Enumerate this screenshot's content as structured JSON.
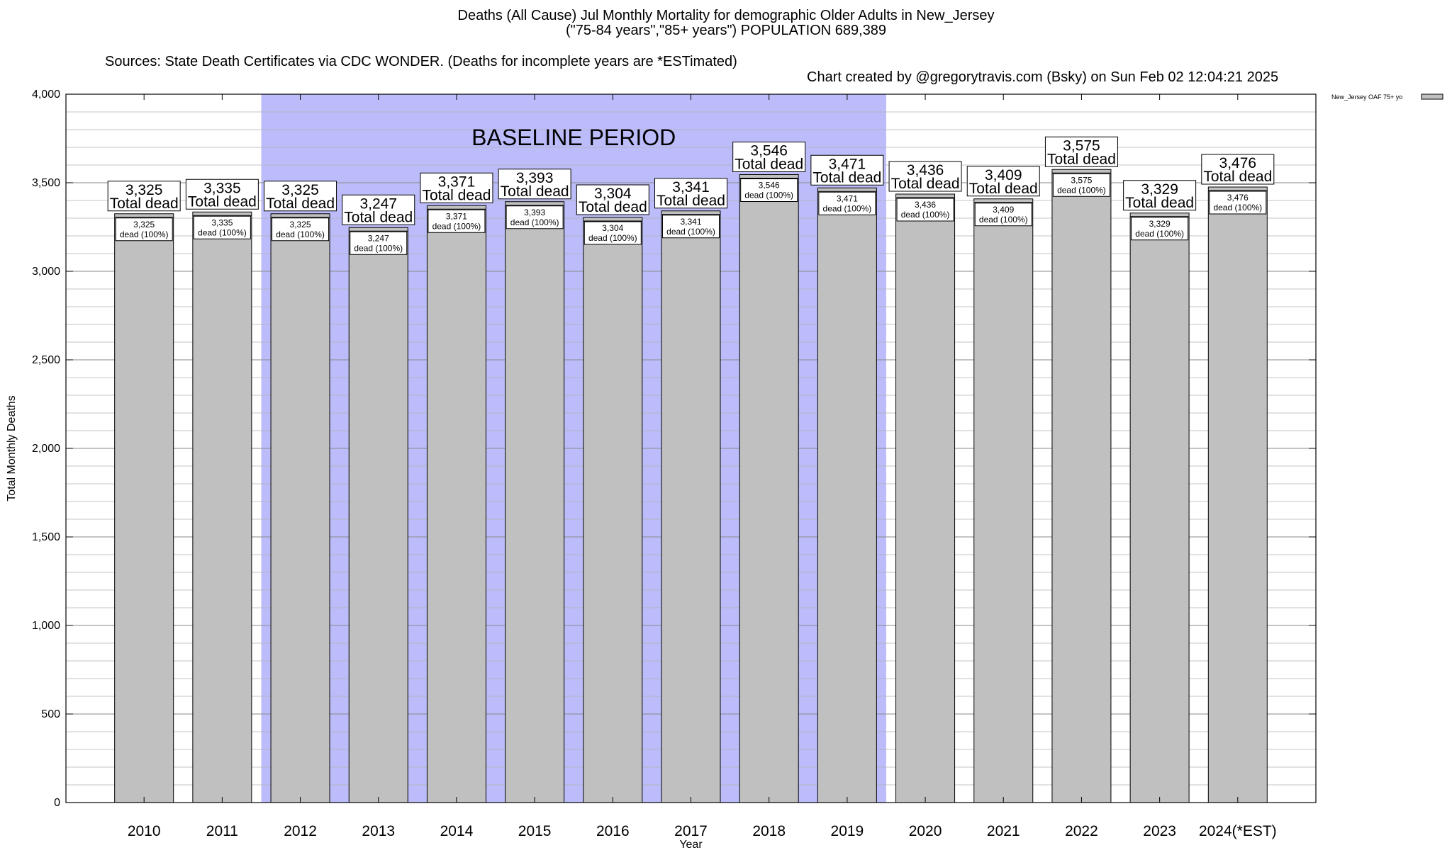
{
  "header": {
    "title_line1": "Deaths (All Cause) Jul Monthly Mortality for demographic Older Adults in New_Jersey",
    "title_line2": "(\"75-84 years\",\"85+ years\") POPULATION 689,389",
    "sources": "Sources: State Death Certificates via CDC WONDER. (Deaths for incomplete years are *ESTimated)",
    "credit": "Chart created by @gregorytravis.com (Bsky) on Sun Feb 02 12:04:21 2025"
  },
  "chart_data": {
    "type": "bar",
    "title": "Deaths (All Cause) Jul Monthly Mortality for demographic Older Adults in New_Jersey",
    "xlabel": "Year",
    "ylabel": "Total Monthly Deaths",
    "ylim": [
      0,
      4000
    ],
    "yticks": [
      0,
      500,
      1000,
      1500,
      2000,
      2500,
      3000,
      3500,
      4000
    ],
    "ytick_labels": [
      "0",
      "500",
      "1,000",
      "1,500",
      "2,000",
      "2,500",
      "3,000",
      "3,500",
      "4,000"
    ],
    "categories": [
      "2010",
      "2011",
      "2012",
      "2013",
      "2014",
      "2015",
      "2016",
      "2017",
      "2018",
      "2019",
      "2020",
      "2021",
      "2022",
      "2023",
      "2024(*EST)"
    ],
    "series": [
      {
        "name": "New_Jersey OAF 75+ yo",
        "color": "#c0c0c0",
        "values": [
          3325,
          3335,
          3325,
          3247,
          3371,
          3393,
          3304,
          3341,
          3546,
          3471,
          3436,
          3409,
          3575,
          3329,
          3476
        ],
        "value_labels": [
          "3,325",
          "3,335",
          "3,325",
          "3,247",
          "3,371",
          "3,393",
          "3,304",
          "3,341",
          "3,546",
          "3,471",
          "3,436",
          "3,409",
          "3,575",
          "3,329",
          "3,476"
        ]
      }
    ],
    "total_label": "Total dead",
    "segment_label": "dead (100%)",
    "baseline_period": {
      "label": "BASELINE PERIOD",
      "start": "2012",
      "end": "2019",
      "color": "#bcbcfb"
    },
    "legend": {
      "placement": "top-right",
      "entries": [
        "New_Jersey OAF 75+ yo"
      ]
    },
    "grid": true
  }
}
